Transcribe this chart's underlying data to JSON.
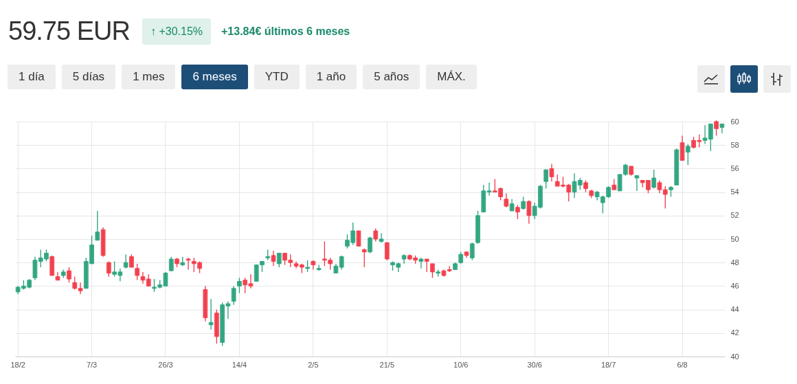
{
  "chart_data": {
    "type": "candlestick",
    "title": "59.75 EUR",
    "annotations": [
      "↑ +30.15%",
      "+13.84€ últimos 6 meses",
      "1 día",
      "5 días",
      "1 mes",
      "6 meses",
      "YTD",
      "1 año",
      "5 años",
      "MÁX."
    ],
    "categories": [
      "18/2",
      null,
      null,
      null,
      null,
      null,
      null,
      null,
      null,
      null,
      null,
      null,
      null,
      "7/3",
      null,
      null,
      null,
      null,
      null,
      null,
      null,
      null,
      null,
      null,
      null,
      null,
      "26/3",
      null,
      null,
      null,
      null,
      null,
      null,
      null,
      null,
      null,
      null,
      null,
      null,
      "14/4",
      null,
      null,
      null,
      null,
      null,
      null,
      null,
      null,
      null,
      null,
      null,
      null,
      "2/5",
      null,
      null,
      null,
      null,
      null,
      null,
      null,
      null,
      null,
      null,
      null,
      null,
      "21/5",
      null,
      null,
      null,
      null,
      null,
      null,
      null,
      null,
      null,
      null,
      null,
      null,
      "10/6",
      null,
      null,
      null,
      null,
      null,
      null,
      null,
      null,
      null,
      null,
      null,
      null,
      "30/6",
      null,
      null,
      null,
      null,
      null,
      null,
      null,
      null,
      null,
      null,
      null,
      null,
      "18/7",
      null,
      null,
      null,
      null,
      null,
      null,
      null,
      null,
      null,
      null,
      null,
      null,
      "6/8",
      null,
      null,
      null,
      null,
      null,
      null,
      null
    ],
    "ohlc": [
      [
        45.5,
        46.0,
        45.3,
        45.9
      ],
      [
        45.8,
        46.5,
        45.7,
        46.0
      ],
      [
        45.9,
        46.6,
        45.8,
        46.5
      ],
      [
        46.7,
        48.5,
        46.5,
        48.2
      ],
      [
        48.1,
        49.1,
        47.6,
        48.4
      ],
      [
        48.3,
        49.1,
        48.1,
        48.8
      ],
      [
        48.5,
        48.6,
        46.9,
        46.9
      ],
      [
        46.8,
        47.2,
        46.5,
        46.5
      ],
      [
        46.9,
        47.4,
        46.7,
        47.2
      ],
      [
        47.3,
        47.6,
        46.3,
        46.6
      ],
      [
        46.3,
        46.8,
        45.7,
        45.8
      ],
      [
        45.8,
        46.3,
        45.3,
        45.6
      ],
      [
        45.8,
        48.4,
        45.8,
        48.1
      ],
      [
        47.9,
        50.3,
        47.9,
        49.5
      ],
      [
        49.9,
        52.4,
        49.9,
        50.6
      ],
      [
        50.8,
        51.0,
        48.5,
        48.6
      ],
      [
        48.0,
        48.1,
        46.8,
        47.1
      ],
      [
        47.0,
        48.1,
        46.8,
        47.2
      ],
      [
        46.9,
        47.5,
        46.4,
        47.2
      ],
      [
        47.6,
        48.7,
        47.5,
        48.0
      ],
      [
        48.5,
        48.7,
        47.6,
        47.6
      ],
      [
        47.5,
        47.9,
        46.5,
        46.9
      ],
      [
        46.8,
        47.2,
        46.2,
        46.5
      ],
      [
        46.6,
        47.0,
        46.0,
        46.0
      ],
      [
        45.8,
        46.6,
        45.5,
        45.9
      ],
      [
        45.9,
        46.5,
        45.8,
        46.1
      ],
      [
        46.0,
        47.2,
        46.0,
        47.1
      ],
      [
        47.3,
        48.5,
        47.3,
        48.3
      ],
      [
        48.3,
        48.4,
        47.6,
        47.9
      ],
      [
        47.8,
        48.5,
        47.7,
        48.0
      ],
      [
        48.3,
        48.4,
        47.4,
        48.2
      ],
      [
        48.1,
        48.4,
        47.2,
        47.9
      ],
      [
        48.0,
        48.1,
        47.1,
        47.5
      ],
      [
        45.7,
        46.0,
        43.0,
        43.3
      ],
      [
        42.7,
        44.9,
        42.3,
        42.9
      ],
      [
        43.7,
        44.0,
        41.1,
        41.7
      ],
      [
        41.2,
        44.6,
        40.9,
        44.4
      ],
      [
        44.3,
        44.7,
        43.2,
        44.5
      ],
      [
        44.7,
        46.0,
        44.4,
        45.8
      ],
      [
        46.0,
        46.7,
        45.4,
        46.4
      ],
      [
        46.5,
        46.7,
        45.4,
        46.1
      ],
      [
        46.2,
        47.0,
        45.8,
        46.0
      ],
      [
        46.4,
        47.8,
        46.4,
        47.8
      ],
      [
        47.8,
        48.1,
        47.2,
        48.1
      ],
      [
        48.4,
        49.1,
        48.2,
        48.5
      ],
      [
        48.6,
        49.0,
        47.7,
        48.1
      ],
      [
        47.9,
        48.8,
        47.6,
        48.8
      ],
      [
        48.8,
        48.8,
        47.8,
        48.2
      ],
      [
        48.2,
        48.7,
        47.6,
        48.0
      ],
      [
        47.9,
        48.1,
        47.5,
        47.7
      ],
      [
        47.8,
        47.9,
        47.1,
        47.6
      ],
      [
        47.5,
        48.2,
        47.2,
        47.6
      ],
      [
        48.1,
        48.2,
        47.4,
        47.8
      ],
      [
        47.4,
        47.8,
        47.3,
        47.5
      ],
      [
        48.3,
        49.8,
        47.7,
        48.2
      ],
      [
        48.2,
        48.4,
        47.4,
        47.9
      ],
      [
        47.1,
        47.9,
        47.1,
        47.7
      ],
      [
        47.6,
        48.6,
        47.4,
        48.5
      ],
      [
        49.4,
        50.4,
        49.2,
        49.9
      ],
      [
        49.7,
        51.4,
        49.5,
        50.7
      ],
      [
        50.7,
        50.7,
        49.4,
        49.4
      ],
      [
        49.1,
        49.2,
        47.6,
        48.9
      ],
      [
        48.9,
        50.2,
        48.8,
        50.1
      ],
      [
        50.7,
        50.9,
        49.8,
        50.0
      ],
      [
        49.8,
        50.5,
        49.7,
        50.0
      ],
      [
        49.7,
        49.7,
        48.2,
        48.3
      ],
      [
        47.8,
        48.1,
        47.3,
        48.0
      ],
      [
        47.6,
        48.0,
        47.2,
        47.9
      ],
      [
        48.3,
        48.7,
        47.9,
        48.6
      ],
      [
        48.6,
        48.7,
        48.2,
        48.3
      ],
      [
        48.4,
        48.6,
        47.9,
        48.2
      ],
      [
        48.1,
        48.4,
        47.5,
        48.3
      ],
      [
        48.3,
        48.3,
        47.2,
        48.1
      ],
      [
        47.9,
        47.9,
        46.7,
        47.2
      ],
      [
        47.1,
        47.4,
        46.8,
        47.2
      ],
      [
        47.3,
        47.4,
        46.8,
        46.9
      ],
      [
        47.4,
        47.7,
        47.2,
        47.3
      ],
      [
        47.4,
        48.0,
        47.4,
        47.9
      ],
      [
        48.0,
        48.9,
        47.9,
        48.7
      ],
      [
        48.9,
        48.9,
        48.4,
        48.6
      ],
      [
        48.4,
        49.7,
        48.2,
        49.6
      ],
      [
        49.7,
        52.4,
        49.6,
        52.0
      ],
      [
        52.3,
        54.6,
        52.3,
        54.1
      ],
      [
        54.0,
        54.8,
        53.7,
        54.1
      ],
      [
        54.1,
        55.1,
        54.0,
        54.0
      ],
      [
        54.3,
        54.4,
        53.3,
        53.6
      ],
      [
        53.4,
        53.9,
        52.7,
        52.8
      ],
      [
        52.4,
        53.4,
        52.4,
        53.0
      ],
      [
        52.7,
        52.9,
        51.7,
        52.3
      ],
      [
        52.6,
        53.6,
        52.5,
        53.2
      ],
      [
        53.2,
        53.3,
        51.3,
        52.0
      ],
      [
        52.0,
        53.1,
        51.7,
        52.8
      ],
      [
        52.7,
        54.6,
        52.6,
        54.5
      ],
      [
        54.9,
        55.9,
        54.3,
        55.9
      ],
      [
        56.0,
        56.4,
        54.9,
        55.3
      ],
      [
        54.9,
        55.5,
        54.5,
        54.5
      ],
      [
        54.6,
        55.3,
        54.4,
        54.5
      ],
      [
        54.6,
        54.7,
        53.2,
        54.0
      ],
      [
        54.0,
        55.6,
        53.5,
        54.9
      ],
      [
        54.6,
        55.2,
        54.2,
        55.0
      ],
      [
        54.8,
        55.0,
        54.0,
        54.3
      ],
      [
        54.1,
        54.2,
        53.5,
        53.7
      ],
      [
        53.6,
        54.1,
        53.3,
        54.0
      ],
      [
        53.1,
        53.7,
        52.2,
        53.6
      ],
      [
        53.6,
        54.5,
        53.5,
        54.4
      ],
      [
        54.6,
        55.1,
        54.2,
        54.2
      ],
      [
        54.1,
        55.5,
        54.1,
        55.5
      ],
      [
        55.5,
        56.4,
        55.4,
        56.3
      ],
      [
        56.2,
        56.2,
        55.4,
        55.5
      ],
      [
        55.2,
        55.4,
        54.1,
        55.4
      ],
      [
        55.0,
        55.0,
        54.4,
        54.8
      ],
      [
        55.0,
        55.0,
        53.9,
        54.2
      ],
      [
        54.4,
        55.9,
        54.3,
        55.2
      ],
      [
        54.8,
        55.0,
        53.9,
        54.2
      ],
      [
        54.2,
        54.5,
        52.6,
        53.8
      ],
      [
        54.2,
        54.5,
        53.6,
        54.4
      ],
      [
        54.6,
        57.7,
        54.6,
        57.6
      ],
      [
        58.2,
        58.8,
        56.7,
        56.7
      ],
      [
        57.4,
        58.1,
        56.3,
        57.9
      ],
      [
        58.4,
        58.7,
        57.7,
        57.8
      ],
      [
        58.4,
        58.9,
        57.8,
        58.3
      ],
      [
        58.4,
        59.7,
        58.1,
        58.6
      ],
      [
        58.5,
        59.8,
        57.5,
        59.8
      ],
      [
        60.0,
        60.1,
        58.8,
        59.4
      ],
      [
        59.5,
        59.8,
        59.0,
        59.8
      ]
    ],
    "colors": [
      "#26a17b",
      "#26a17b",
      "#26a17b",
      "#26a17b",
      "#26a17b",
      "#26a17b",
      "#f23645",
      "#f23645",
      "#26a17b",
      "#f23645",
      "#f23645",
      "#f23645",
      "#26a17b",
      "#26a17b",
      "#26a17b",
      "#f23645",
      "#f23645",
      "#26a17b",
      "#26a17b",
      "#26a17b",
      "#f23645",
      "#f23645",
      "#f23645",
      "#f23645",
      "#26a17b",
      "#26a17b",
      "#26a17b",
      "#26a17b",
      "#f23645",
      "#26a17b",
      "#f23645",
      "#f23645",
      "#f23645",
      "#f23645",
      "#26a17b",
      "#f23645",
      "#26a17b",
      "#26a17b",
      "#26a17b",
      "#26a17b",
      "#f23645",
      "#f23645",
      "#26a17b",
      "#26a17b",
      "#26a17b",
      "#f23645",
      "#26a17b",
      "#f23645",
      "#f23645",
      "#f23645",
      "#f23645",
      "#26a17b",
      "#f23645",
      "#26a17b",
      "#f23645",
      "#f23645",
      "#26a17b",
      "#26a17b",
      "#26a17b",
      "#26a17b",
      "#f23645",
      "#f23645",
      "#26a17b",
      "#f23645",
      "#26a17b",
      "#f23645",
      "#26a17b",
      "#26a17b",
      "#26a17b",
      "#f23645",
      "#f23645",
      "#26a17b",
      "#f23645",
      "#f23645",
      "#26a17b",
      "#f23645",
      "#f23645",
      "#26a17b",
      "#26a17b",
      "#f23645",
      "#26a17b",
      "#26a17b",
      "#26a17b",
      "#26a17b",
      "#f23645",
      "#f23645",
      "#f23645",
      "#26a17b",
      "#f23645",
      "#26a17b",
      "#f23645",
      "#26a17b",
      "#26a17b",
      "#26a17b",
      "#f23645",
      "#f23645",
      "#f23645",
      "#f23645",
      "#26a17b",
      "#26a17b",
      "#f23645",
      "#f23645",
      "#26a17b",
      "#26a17b",
      "#26a17b",
      "#f23645",
      "#26a17b",
      "#26a17b",
      "#f23645",
      "#26a17b",
      "#f23645",
      "#f23645",
      "#26a17b",
      "#f23645",
      "#f23645",
      "#26a17b",
      "#26a17b",
      "#f23645",
      "#26a17b",
      "#f23645",
      "#f23645",
      "#26a17b",
      "#26a17b",
      "#f23645",
      "#26a17b"
    ],
    "ylim": [
      40,
      60
    ],
    "yticks": [
      40,
      42,
      44,
      46,
      48,
      50,
      52,
      54,
      56,
      58,
      60
    ],
    "grid": true
  }
}
